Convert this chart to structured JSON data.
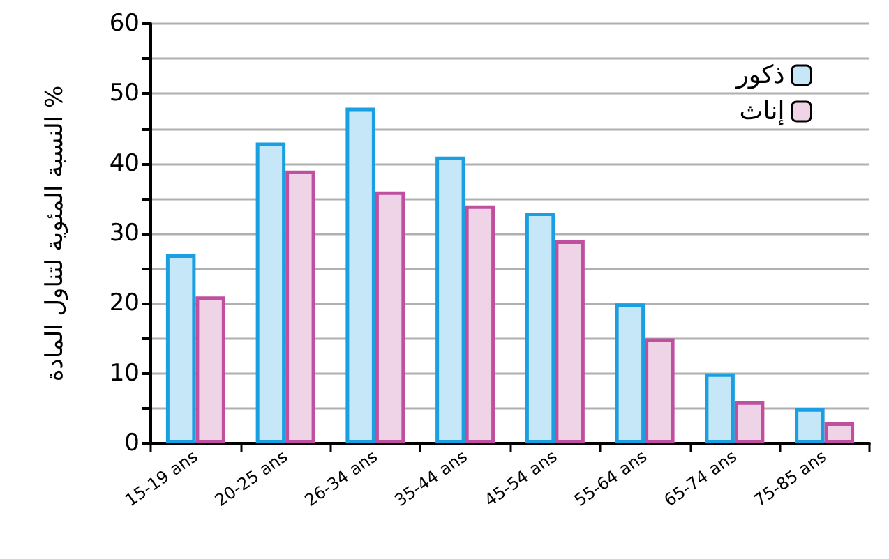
{
  "chart_data": {
    "type": "bar",
    "ylabel": "النسبة المئوية لتناول المادة %",
    "categories": [
      "15-19 ans",
      "20-25 ans",
      "26-34 ans",
      "35-44 ans",
      "45-54 ans",
      "55-64 ans",
      "65-74 ans",
      "75-85 ans"
    ],
    "series": [
      {
        "name": "ذكور",
        "color": "#1a9fe0",
        "values": [
          27,
          43,
          48,
          41,
          33,
          20,
          10,
          5
        ]
      },
      {
        "name": "إناث",
        "color": "#c0509f",
        "values": [
          21,
          39,
          36,
          34,
          29,
          15,
          6,
          3
        ]
      }
    ],
    "ylim": [
      0,
      60
    ],
    "yticks": [
      0,
      {
        "value": 5,
        "label": null
      },
      10,
      {
        "value": 15,
        "label": null
      },
      20,
      {
        "value": 25,
        "label": null
      },
      30,
      {
        "value": 35,
        "label": null
      },
      40,
      {
        "value": 45,
        "label": null
      },
      50,
      {
        "value": 55,
        "label": null
      },
      60
    ],
    "grid": "y",
    "legend": "top right"
  }
}
